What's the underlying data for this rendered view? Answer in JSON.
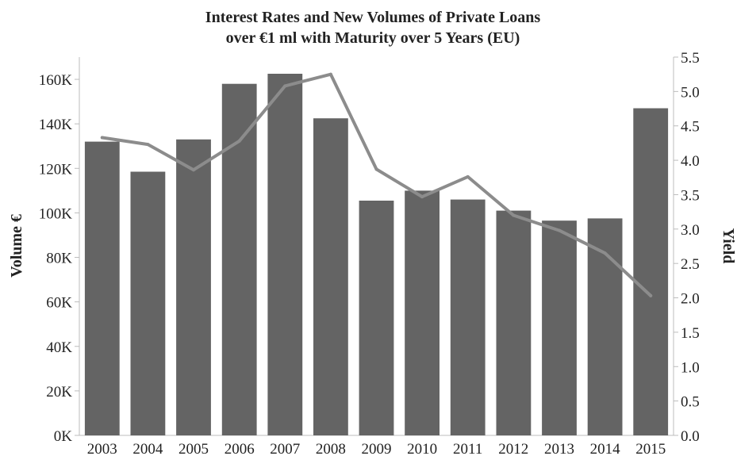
{
  "chart_data": {
    "type": "bar",
    "title_lines": [
      "Interest Rates and New Volumes of Private Loans",
      "over €1 ml with Maturity over 5 Years (EU)"
    ],
    "xlabel": "",
    "ylabel": "Volume €",
    "y2label": "Yield",
    "categories": [
      "2003",
      "2004",
      "2005",
      "2006",
      "2007",
      "2008",
      "2009",
      "2010",
      "2011",
      "2012",
      "2013",
      "2014",
      "2015"
    ],
    "series": [
      {
        "name": "Volume €",
        "type": "bar",
        "axis": "left",
        "values": [
          132000,
          118500,
          133000,
          158000,
          162500,
          142500,
          105500,
          110000,
          106000,
          101000,
          96500,
          97500,
          147000
        ]
      },
      {
        "name": "Yield",
        "type": "line",
        "axis": "right",
        "values": [
          4.33,
          4.23,
          3.86,
          4.28,
          5.08,
          5.25,
          3.87,
          3.47,
          3.76,
          3.2,
          2.98,
          2.65,
          2.03
        ]
      }
    ],
    "ylim": [
      0,
      170000
    ],
    "y2lim": [
      0,
      5.5
    ],
    "yticks": [
      {
        "value": 0,
        "label": "0K"
      },
      {
        "value": 20000,
        "label": "20K"
      },
      {
        "value": 40000,
        "label": "40K"
      },
      {
        "value": 60000,
        "label": "60K"
      },
      {
        "value": 80000,
        "label": "80K"
      },
      {
        "value": 100000,
        "label": "100K"
      },
      {
        "value": 120000,
        "label": "120K"
      },
      {
        "value": 140000,
        "label": "140K"
      },
      {
        "value": 160000,
        "label": "160K"
      }
    ],
    "y2ticks": [
      "0.0",
      "0.5",
      "1.0",
      "1.5",
      "2.0",
      "2.5",
      "3.0",
      "3.5",
      "4.0",
      "4.5",
      "5.0",
      "5.5"
    ],
    "grid": false,
    "colors": {
      "bar": "#646464",
      "line": "#8c8c8c",
      "axis": "#bcbcbc",
      "text": "#222222"
    }
  }
}
